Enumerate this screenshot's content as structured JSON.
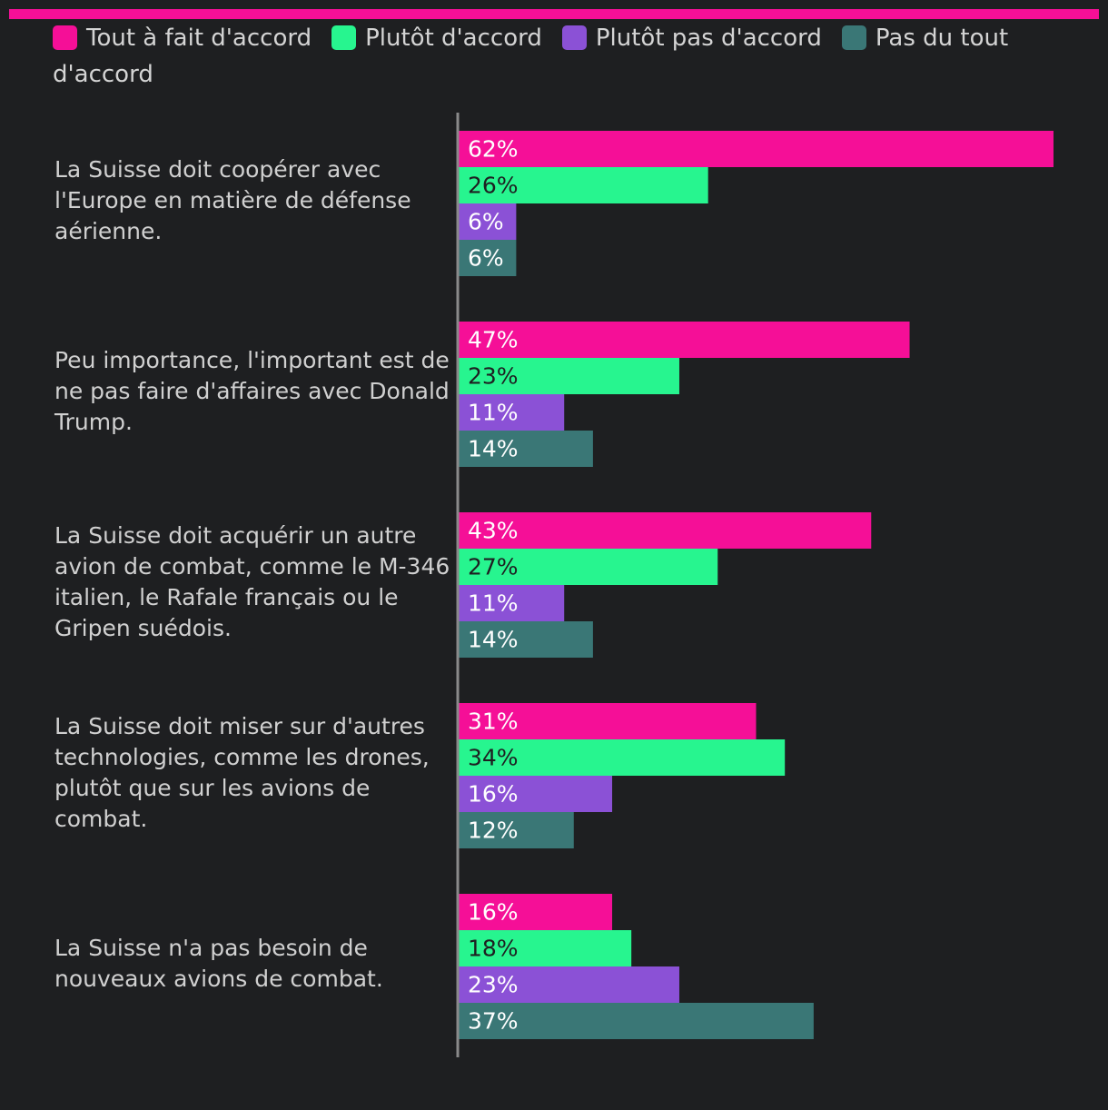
{
  "colors": {
    "background": "#1e1f21",
    "accent": "#f50f97",
    "axis": "#8a8a8a"
  },
  "legend": [
    {
      "label": "Tout à fait d'accord",
      "color": "#f50f97"
    },
    {
      "label": "Plutôt d'accord",
      "color": "#27f58f"
    },
    {
      "label": "Plutôt pas d'accord",
      "color": "#8b51d6"
    },
    {
      "label": "Pas du tout d'accord",
      "color": "#3a7776"
    }
  ],
  "chart_data": {
    "type": "bar",
    "orientation": "horizontal",
    "title": "",
    "xlabel": "",
    "ylabel": "",
    "xlim": [
      0,
      62
    ],
    "grid": false,
    "legend_position": "top",
    "value_suffix": "%",
    "categories": [
      "La Suisse doit coopérer avec l'Europe en matière de défense aérienne.",
      "Peu importance, l'important est de ne pas faire d'affaires avec Donald Trump.",
      "La Suisse doit acquérir un autre avion de combat, comme le M-346 italien, le Rafale français ou le Gripen suédois.",
      "La Suisse doit miser sur d'autres technologies, comme les drones, plutôt que sur les avions de combat.",
      "La Suisse n'a pas besoin de nouveaux avions de combat."
    ],
    "series": [
      {
        "name": "Tout à fait d'accord",
        "color": "#f50f97",
        "label_color": "#ffffff",
        "values": [
          62,
          47,
          43,
          31,
          16
        ]
      },
      {
        "name": "Plutôt d'accord",
        "color": "#27f58f",
        "label_color": "#1e1f21",
        "values": [
          26,
          23,
          27,
          34,
          18
        ]
      },
      {
        "name": "Plutôt pas d'accord",
        "color": "#8b51d6",
        "label_color": "#ffffff",
        "values": [
          6,
          11,
          11,
          16,
          23
        ]
      },
      {
        "name": "Pas du tout d'accord",
        "color": "#3a7776",
        "label_color": "#ffffff",
        "values": [
          6,
          14,
          14,
          12,
          37
        ]
      }
    ]
  }
}
